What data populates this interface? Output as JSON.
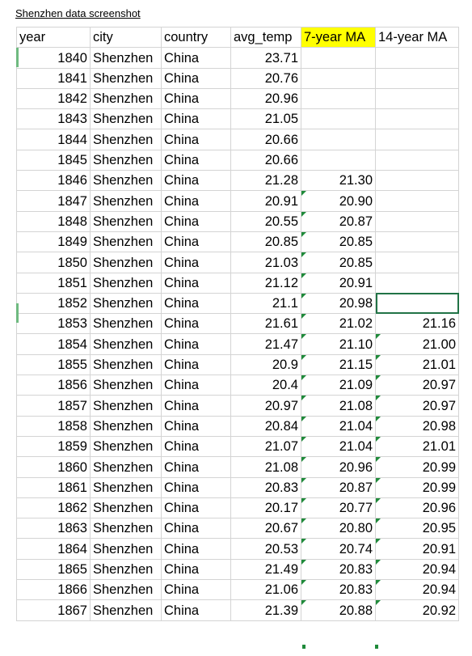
{
  "caption": "Shenzhen data screenshot",
  "colors": {
    "highlight": "#ffff00",
    "selection": "#217346",
    "error_flag": "#1f8a3a",
    "gridline": "#d4d4d4"
  },
  "headers": {
    "year": "year",
    "city": "city",
    "country": "country",
    "avg_temp": "avg_temp",
    "ma7": "7-year MA",
    "ma14": "14-year MA"
  },
  "rows": [
    {
      "year": "1840",
      "city": "Shenzhen",
      "country": "China",
      "avg_temp": "23.71",
      "ma7": "",
      "ma14": ""
    },
    {
      "year": "1841",
      "city": "Shenzhen",
      "country": "China",
      "avg_temp": "20.76",
      "ma7": "",
      "ma14": ""
    },
    {
      "year": "1842",
      "city": "Shenzhen",
      "country": "China",
      "avg_temp": "20.96",
      "ma7": "",
      "ma14": ""
    },
    {
      "year": "1843",
      "city": "Shenzhen",
      "country": "China",
      "avg_temp": "21.05",
      "ma7": "",
      "ma14": ""
    },
    {
      "year": "1844",
      "city": "Shenzhen",
      "country": "China",
      "avg_temp": "20.66",
      "ma7": "",
      "ma14": ""
    },
    {
      "year": "1845",
      "city": "Shenzhen",
      "country": "China",
      "avg_temp": "20.66",
      "ma7": "",
      "ma14": ""
    },
    {
      "year": "1846",
      "city": "Shenzhen",
      "country": "China",
      "avg_temp": "21.28",
      "ma7": "21.30",
      "ma14": ""
    },
    {
      "year": "1847",
      "city": "Shenzhen",
      "country": "China",
      "avg_temp": "20.91",
      "ma7": "20.90",
      "ma14": ""
    },
    {
      "year": "1848",
      "city": "Shenzhen",
      "country": "China",
      "avg_temp": "20.55",
      "ma7": "20.87",
      "ma14": ""
    },
    {
      "year": "1849",
      "city": "Shenzhen",
      "country": "China",
      "avg_temp": "20.85",
      "ma7": "20.85",
      "ma14": ""
    },
    {
      "year": "1850",
      "city": "Shenzhen",
      "country": "China",
      "avg_temp": "21.03",
      "ma7": "20.85",
      "ma14": ""
    },
    {
      "year": "1851",
      "city": "Shenzhen",
      "country": "China",
      "avg_temp": "21.12",
      "ma7": "20.91",
      "ma14": ""
    },
    {
      "year": "1852",
      "city": "Shenzhen",
      "country": "China",
      "avg_temp": "21.1",
      "ma7": "20.98",
      "ma14": ""
    },
    {
      "year": "1853",
      "city": "Shenzhen",
      "country": "China",
      "avg_temp": "21.61",
      "ma7": "21.02",
      "ma14": "21.16"
    },
    {
      "year": "1854",
      "city": "Shenzhen",
      "country": "China",
      "avg_temp": "21.47",
      "ma7": "21.10",
      "ma14": "21.00"
    },
    {
      "year": "1855",
      "city": "Shenzhen",
      "country": "China",
      "avg_temp": "20.9",
      "ma7": "21.15",
      "ma14": "21.01"
    },
    {
      "year": "1856",
      "city": "Shenzhen",
      "country": "China",
      "avg_temp": "20.4",
      "ma7": "21.09",
      "ma14": "20.97"
    },
    {
      "year": "1857",
      "city": "Shenzhen",
      "country": "China",
      "avg_temp": "20.97",
      "ma7": "21.08",
      "ma14": "20.97"
    },
    {
      "year": "1858",
      "city": "Shenzhen",
      "country": "China",
      "avg_temp": "20.84",
      "ma7": "21.04",
      "ma14": "20.98"
    },
    {
      "year": "1859",
      "city": "Shenzhen",
      "country": "China",
      "avg_temp": "21.07",
      "ma7": "21.04",
      "ma14": "21.01"
    },
    {
      "year": "1860",
      "city": "Shenzhen",
      "country": "China",
      "avg_temp": "21.08",
      "ma7": "20.96",
      "ma14": "20.99"
    },
    {
      "year": "1861",
      "city": "Shenzhen",
      "country": "China",
      "avg_temp": "20.83",
      "ma7": "20.87",
      "ma14": "20.99"
    },
    {
      "year": "1862",
      "city": "Shenzhen",
      "country": "China",
      "avg_temp": "20.17",
      "ma7": "20.77",
      "ma14": "20.96"
    },
    {
      "year": "1863",
      "city": "Shenzhen",
      "country": "China",
      "avg_temp": "20.67",
      "ma7": "20.80",
      "ma14": "20.95"
    },
    {
      "year": "1864",
      "city": "Shenzhen",
      "country": "China",
      "avg_temp": "20.53",
      "ma7": "20.74",
      "ma14": "20.91"
    },
    {
      "year": "1865",
      "city": "Shenzhen",
      "country": "China",
      "avg_temp": "21.49",
      "ma7": "20.83",
      "ma14": "20.94"
    },
    {
      "year": "1866",
      "city": "Shenzhen",
      "country": "China",
      "avg_temp": "21.06",
      "ma7": "20.83",
      "ma14": "20.94"
    },
    {
      "year": "1867",
      "city": "Shenzhen",
      "country": "China",
      "avg_temp": "21.39",
      "ma7": "20.88",
      "ma14": "20.92"
    }
  ]
}
